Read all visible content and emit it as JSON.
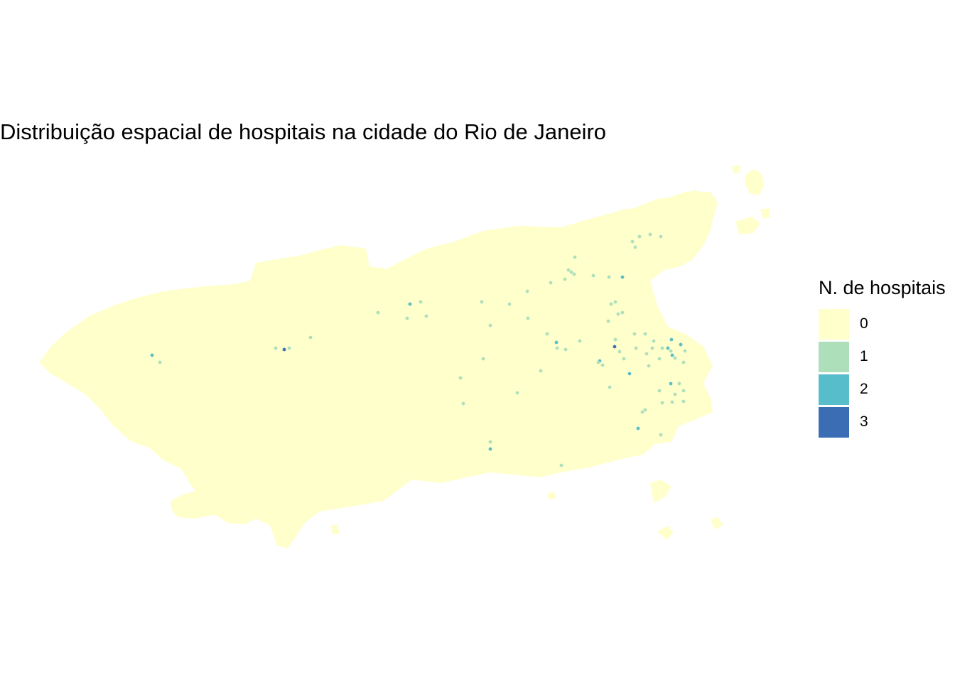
{
  "title": "Distribuição espacial de hospitais na cidade do Rio de Janeiro",
  "legend": {
    "title": "N. de hospitais",
    "items": [
      {
        "label": "0",
        "color": "#ffffcc"
      },
      {
        "label": "1",
        "color": "#addfbb"
      },
      {
        "label": "2",
        "color": "#58bdcb"
      },
      {
        "label": "3",
        "color": "#3a6db3"
      }
    ]
  },
  "colors": {
    "background": "#ffffff",
    "base_fill": "#ffffcc"
  }
}
